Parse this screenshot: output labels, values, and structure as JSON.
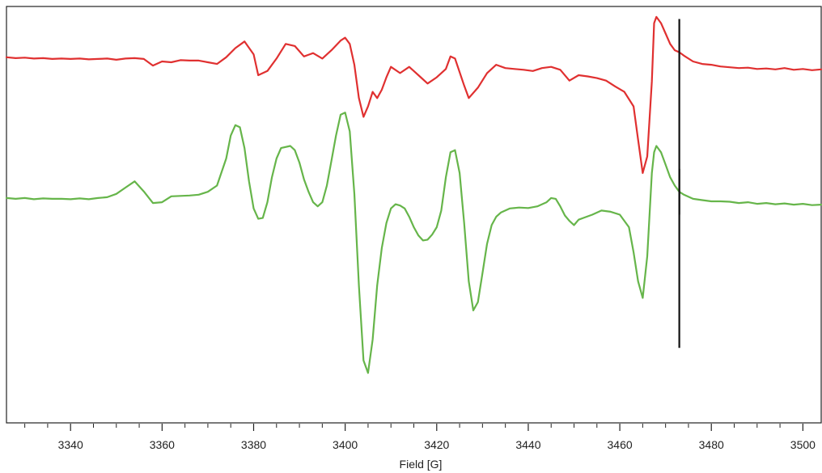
{
  "chart_data": {
    "type": "line",
    "title": "",
    "xlabel": "Field [G]",
    "ylabel": "",
    "xlim": [
      3326,
      3504
    ],
    "ylim": [
      0,
      1
    ],
    "x_ticks_major": [
      3340,
      3360,
      3380,
      3400,
      3420,
      3440,
      3460,
      3480,
      3500
    ],
    "tick_labels": [
      "3340",
      "3360",
      "3380",
      "3400",
      "3420",
      "3440",
      "3460",
      "3480",
      "3500"
    ],
    "x_ticks_minor_step": 5,
    "grid": false,
    "legend": "none",
    "marker_x": 3473,
    "marker_color": "#111111",
    "series": [
      {
        "color": "#e03030",
        "marker_range": [
          0.5,
          0.97
        ],
        "points": [
          [
            3326,
            0.878
          ],
          [
            3328,
            0.876
          ],
          [
            3330,
            0.877
          ],
          [
            3332,
            0.875
          ],
          [
            3334,
            0.876
          ],
          [
            3336,
            0.874
          ],
          [
            3338,
            0.875
          ],
          [
            3340,
            0.874
          ],
          [
            3342,
            0.875
          ],
          [
            3344,
            0.873
          ],
          [
            3346,
            0.874
          ],
          [
            3348,
            0.875
          ],
          [
            3350,
            0.872
          ],
          [
            3352,
            0.875
          ],
          [
            3354,
            0.876
          ],
          [
            3356,
            0.874
          ],
          [
            3358,
            0.858
          ],
          [
            3360,
            0.868
          ],
          [
            3362,
            0.866
          ],
          [
            3364,
            0.871
          ],
          [
            3366,
            0.87
          ],
          [
            3368,
            0.87
          ],
          [
            3370,
            0.866
          ],
          [
            3372,
            0.862
          ],
          [
            3374,
            0.878
          ],
          [
            3376,
            0.9
          ],
          [
            3378,
            0.916
          ],
          [
            3380,
            0.885
          ],
          [
            3381,
            0.835
          ],
          [
            3383,
            0.845
          ],
          [
            3385,
            0.875
          ],
          [
            3387,
            0.91
          ],
          [
            3389,
            0.905
          ],
          [
            3391,
            0.88
          ],
          [
            3393,
            0.888
          ],
          [
            3395,
            0.875
          ],
          [
            3397,
            0.895
          ],
          [
            3399,
            0.918
          ],
          [
            3400,
            0.925
          ],
          [
            3401,
            0.91
          ],
          [
            3402,
            0.86
          ],
          [
            3403,
            0.78
          ],
          [
            3404,
            0.735
          ],
          [
            3405,
            0.76
          ],
          [
            3406,
            0.795
          ],
          [
            3407,
            0.78
          ],
          [
            3408,
            0.8
          ],
          [
            3409,
            0.83
          ],
          [
            3410,
            0.855
          ],
          [
            3412,
            0.84
          ],
          [
            3414,
            0.855
          ],
          [
            3416,
            0.835
          ],
          [
            3418,
            0.815
          ],
          [
            3420,
            0.83
          ],
          [
            3422,
            0.85
          ],
          [
            3423,
            0.88
          ],
          [
            3424,
            0.875
          ],
          [
            3426,
            0.81
          ],
          [
            3427,
            0.78
          ],
          [
            3429,
            0.805
          ],
          [
            3431,
            0.84
          ],
          [
            3433,
            0.86
          ],
          [
            3435,
            0.852
          ],
          [
            3437,
            0.85
          ],
          [
            3439,
            0.848
          ],
          [
            3441,
            0.845
          ],
          [
            3443,
            0.852
          ],
          [
            3445,
            0.855
          ],
          [
            3447,
            0.848
          ],
          [
            3449,
            0.822
          ],
          [
            3451,
            0.835
          ],
          [
            3453,
            0.832
          ],
          [
            3455,
            0.828
          ],
          [
            3457,
            0.822
          ],
          [
            3459,
            0.808
          ],
          [
            3461,
            0.795
          ],
          [
            3463,
            0.76
          ],
          [
            3464,
            0.68
          ],
          [
            3465,
            0.6
          ],
          [
            3466,
            0.64
          ],
          [
            3467,
            0.82
          ],
          [
            3467.5,
            0.96
          ],
          [
            3468,
            0.975
          ],
          [
            3469,
            0.96
          ],
          [
            3470,
            0.935
          ],
          [
            3471,
            0.91
          ],
          [
            3472,
            0.895
          ],
          [
            3473,
            0.89
          ],
          [
            3474,
            0.882
          ],
          [
            3476,
            0.868
          ],
          [
            3478,
            0.862
          ],
          [
            3480,
            0.86
          ],
          [
            3482,
            0.856
          ],
          [
            3484,
            0.854
          ],
          [
            3486,
            0.852
          ],
          [
            3488,
            0.853
          ],
          [
            3490,
            0.85
          ],
          [
            3492,
            0.851
          ],
          [
            3494,
            0.849
          ],
          [
            3496,
            0.852
          ],
          [
            3498,
            0.848
          ],
          [
            3500,
            0.85
          ],
          [
            3502,
            0.847
          ],
          [
            3504,
            0.849
          ]
        ]
      },
      {
        "color": "#66b54a",
        "marker_range": [
          0.18,
          0.61
        ],
        "points": [
          [
            3326,
            0.54
          ],
          [
            3328,
            0.538
          ],
          [
            3330,
            0.54
          ],
          [
            3332,
            0.537
          ],
          [
            3334,
            0.539
          ],
          [
            3336,
            0.538
          ],
          [
            3338,
            0.538
          ],
          [
            3340,
            0.537
          ],
          [
            3342,
            0.539
          ],
          [
            3344,
            0.537
          ],
          [
            3346,
            0.54
          ],
          [
            3348,
            0.542
          ],
          [
            3350,
            0.55
          ],
          [
            3352,
            0.565
          ],
          [
            3354,
            0.58
          ],
          [
            3356,
            0.556
          ],
          [
            3358,
            0.528
          ],
          [
            3360,
            0.53
          ],
          [
            3362,
            0.544
          ],
          [
            3364,
            0.545
          ],
          [
            3366,
            0.546
          ],
          [
            3368,
            0.548
          ],
          [
            3370,
            0.555
          ],
          [
            3372,
            0.57
          ],
          [
            3374,
            0.635
          ],
          [
            3375,
            0.69
          ],
          [
            3376,
            0.715
          ],
          [
            3377,
            0.71
          ],
          [
            3378,
            0.66
          ],
          [
            3379,
            0.58
          ],
          [
            3380,
            0.515
          ],
          [
            3381,
            0.49
          ],
          [
            3382,
            0.492
          ],
          [
            3383,
            0.53
          ],
          [
            3384,
            0.59
          ],
          [
            3385,
            0.635
          ],
          [
            3386,
            0.66
          ],
          [
            3388,
            0.665
          ],
          [
            3389,
            0.655
          ],
          [
            3390,
            0.625
          ],
          [
            3391,
            0.585
          ],
          [
            3392,
            0.555
          ],
          [
            3393,
            0.53
          ],
          [
            3394,
            0.52
          ],
          [
            3395,
            0.53
          ],
          [
            3396,
            0.57
          ],
          [
            3397,
            0.63
          ],
          [
            3398,
            0.69
          ],
          [
            3399,
            0.74
          ],
          [
            3400,
            0.745
          ],
          [
            3401,
            0.7
          ],
          [
            3402,
            0.55
          ],
          [
            3403,
            0.33
          ],
          [
            3404,
            0.15
          ],
          [
            3405,
            0.12
          ],
          [
            3406,
            0.2
          ],
          [
            3407,
            0.33
          ],
          [
            3408,
            0.42
          ],
          [
            3409,
            0.48
          ],
          [
            3410,
            0.515
          ],
          [
            3411,
            0.525
          ],
          [
            3412,
            0.522
          ],
          [
            3413,
            0.515
          ],
          [
            3414,
            0.495
          ],
          [
            3415,
            0.47
          ],
          [
            3416,
            0.45
          ],
          [
            3417,
            0.438
          ],
          [
            3418,
            0.44
          ],
          [
            3419,
            0.452
          ],
          [
            3420,
            0.47
          ],
          [
            3421,
            0.51
          ],
          [
            3422,
            0.59
          ],
          [
            3423,
            0.65
          ],
          [
            3424,
            0.655
          ],
          [
            3425,
            0.6
          ],
          [
            3426,
            0.48
          ],
          [
            3427,
            0.34
          ],
          [
            3428,
            0.27
          ],
          [
            3429,
            0.29
          ],
          [
            3430,
            0.36
          ],
          [
            3431,
            0.43
          ],
          [
            3432,
            0.475
          ],
          [
            3433,
            0.495
          ],
          [
            3434,
            0.505
          ],
          [
            3436,
            0.515
          ],
          [
            3438,
            0.517
          ],
          [
            3440,
            0.516
          ],
          [
            3442,
            0.52
          ],
          [
            3444,
            0.53
          ],
          [
            3445,
            0.54
          ],
          [
            3446,
            0.538
          ],
          [
            3447,
            0.52
          ],
          [
            3448,
            0.498
          ],
          [
            3449,
            0.485
          ],
          [
            3450,
            0.475
          ],
          [
            3451,
            0.488
          ],
          [
            3452,
            0.492
          ],
          [
            3454,
            0.5
          ],
          [
            3456,
            0.51
          ],
          [
            3458,
            0.507
          ],
          [
            3460,
            0.5
          ],
          [
            3462,
            0.47
          ],
          [
            3463,
            0.41
          ],
          [
            3464,
            0.34
          ],
          [
            3465,
            0.3
          ],
          [
            3466,
            0.4
          ],
          [
            3467,
            0.6
          ],
          [
            3467.5,
            0.65
          ],
          [
            3468,
            0.665
          ],
          [
            3469,
            0.65
          ],
          [
            3470,
            0.62
          ],
          [
            3471,
            0.59
          ],
          [
            3472,
            0.57
          ],
          [
            3473,
            0.555
          ],
          [
            3474,
            0.548
          ],
          [
            3476,
            0.538
          ],
          [
            3478,
            0.535
          ],
          [
            3480,
            0.532
          ],
          [
            3482,
            0.532
          ],
          [
            3484,
            0.531
          ],
          [
            3486,
            0.528
          ],
          [
            3488,
            0.53
          ],
          [
            3490,
            0.526
          ],
          [
            3492,
            0.528
          ],
          [
            3494,
            0.525
          ],
          [
            3496,
            0.527
          ],
          [
            3498,
            0.524
          ],
          [
            3500,
            0.526
          ],
          [
            3502,
            0.523
          ],
          [
            3504,
            0.524
          ]
        ]
      }
    ]
  }
}
